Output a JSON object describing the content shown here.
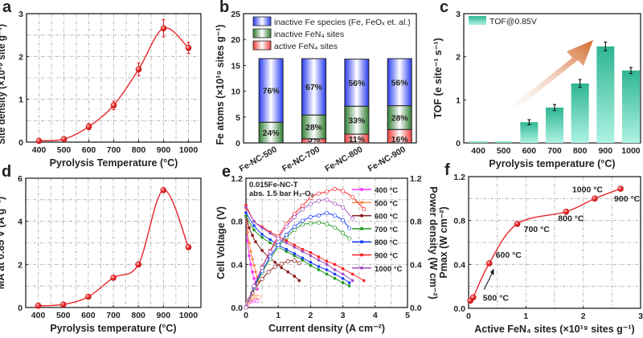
{
  "chart_data": [
    {
      "label": "a",
      "type": "line",
      "xlabel": "Pyrolysis Temperature (°C)",
      "ylabel": "Site density (×10¹⁹ site g⁻¹)",
      "xlim": [
        350,
        1050
      ],
      "ylim": [
        0,
        3
      ],
      "grid": true,
      "xticks": [
        "400",
        "500",
        "600",
        "700",
        "800",
        "900",
        "1000"
      ],
      "yticks": [
        "0",
        "1",
        "2",
        "3"
      ],
      "series": [
        {
          "name": "Site density",
          "color": "#e8242c",
          "x": [
            400,
            500,
            600,
            700,
            800,
            900,
            1000
          ],
          "y": [
            0.03,
            0.07,
            0.36,
            0.86,
            1.7,
            2.66,
            2.2
          ],
          "err": [
            0.02,
            0.03,
            0.07,
            0.1,
            0.15,
            0.2,
            0.13
          ]
        }
      ]
    },
    {
      "label": "b",
      "type": "bar",
      "ylabel": "Fe atoms (×10¹⁹ sites g⁻¹)",
      "ylim": [
        0,
        25
      ],
      "grid": false,
      "categories": [
        "Fe-NC-500",
        "Fe-NC-700",
        "Fe-NC-800",
        "Fe-NC-900"
      ],
      "yticks": [
        "0",
        "5",
        "10",
        "15",
        "20",
        "25"
      ],
      "legend": [
        "inactive Fe species (Fe, FeOₓ et. al.)",
        "inactive FeN₄ sites",
        "active FeN₄ sites"
      ],
      "legend_position": "top-left",
      "series": [
        {
          "name": "active FeN₄ sites",
          "color": "#f03c3c",
          "values": [
            0.0,
            0.8,
            1.7,
            2.6
          ],
          "labels": [
            "",
            "5%",
            "11%",
            "16%"
          ]
        },
        {
          "name": "inactive FeN₄ sites",
          "color": "#2e7d32",
          "values": [
            4.0,
            4.6,
            5.4,
            4.6
          ],
          "labels": [
            "24%",
            "28%",
            "33%",
            "28%"
          ]
        },
        {
          "name": "inactive Fe species (Fe, FeOₓ et. al.)",
          "color": "#2a3cf0",
          "values": [
            12.3,
            10.9,
            9.1,
            9.1
          ],
          "labels": [
            "76%",
            "67%",
            "56%",
            "56%"
          ]
        }
      ]
    },
    {
      "label": "c",
      "type": "bar",
      "xlabel": "Pyrolysis temperature (°C)",
      "ylabel": "TOF (e site⁻¹ s⁻¹)",
      "ylim": [
        0,
        3
      ],
      "grid": false,
      "categories": [
        "400",
        "500",
        "600",
        "700",
        "800",
        "900",
        "1000"
      ],
      "yticks": [
        "0",
        "1",
        "2",
        "3"
      ],
      "legend": [
        "TOF@0.85V"
      ],
      "legend_position": "top-left",
      "series": [
        {
          "name": "TOF@0.85V",
          "color": "#2fb592",
          "values": [
            0.03,
            0.03,
            0.48,
            0.82,
            1.38,
            2.24,
            1.68
          ],
          "err": [
            0,
            0,
            0.06,
            0.07,
            0.09,
            0.1,
            0.07
          ]
        }
      ]
    },
    {
      "label": "d",
      "type": "line",
      "xlabel": "Pyrolysis temperature (°C)",
      "ylabel": "MA at 0.85 V (A g⁻¹)",
      "xlim": [
        350,
        1050
      ],
      "ylim": [
        0,
        6
      ],
      "grid": true,
      "xticks": [
        "400",
        "500",
        "600",
        "700",
        "800",
        "900",
        "1000"
      ],
      "yticks": [
        "0",
        "2",
        "4",
        "6"
      ],
      "series": [
        {
          "name": "MA",
          "color": "#e8242c",
          "x": [
            400,
            500,
            600,
            700,
            800,
            900,
            1000
          ],
          "y": [
            0.08,
            0.14,
            0.5,
            1.38,
            2.0,
            5.45,
            2.8
          ]
        }
      ]
    },
    {
      "label": "e",
      "type": "line",
      "xlabel": "Current density (A cm⁻²)",
      "ylabel": "Cell Voltage (V)",
      "y2label": "Power density (W cm⁻²)",
      "xlim": [
        0,
        5
      ],
      "ylim": [
        0,
        1.2
      ],
      "y2lim": [
        0,
        1.2
      ],
      "grid": true,
      "xticks": [
        "0",
        "1",
        "2",
        "3",
        "4",
        "5"
      ],
      "yticks": [
        "0.0",
        "0.4",
        "0.8",
        "1.2"
      ],
      "y2ticks": [
        "0.0",
        "0.4",
        "0.8",
        "1.2"
      ],
      "annotation": [
        "0.015Fe-NC-T",
        "abs. 1.5 bar H₂-O₂"
      ],
      "legend_position": "right",
      "series": [
        {
          "name": "400 °C",
          "color": "#ff33ff",
          "x": [
            0,
            0.05,
            0.1,
            0.15,
            0.2,
            0.25,
            0.3,
            0.35
          ],
          "voltage": [
            0.92,
            0.62,
            0.48,
            0.4,
            0.33,
            0.27,
            0.22,
            0.17
          ]
        },
        {
          "name": "500 °C",
          "color": "#ff8c4d",
          "x": [
            0,
            0.05,
            0.1,
            0.15,
            0.2,
            0.25,
            0.3,
            0.35,
            0.4
          ],
          "voltage": [
            0.92,
            0.7,
            0.6,
            0.52,
            0.45,
            0.39,
            0.33,
            0.28,
            0.24
          ]
        },
        {
          "name": "600 °C",
          "color": "#8b1a1a",
          "x": [
            0,
            0.1,
            0.2,
            0.3,
            0.5,
            0.7,
            0.9,
            1.1,
            1.3,
            1.5,
            1.65
          ],
          "voltage": [
            0.85,
            0.74,
            0.67,
            0.61,
            0.53,
            0.47,
            0.42,
            0.37,
            0.33,
            0.29,
            0.25
          ]
        },
        {
          "name": "700 °C",
          "color": "#1e9a1e",
          "x": [
            0,
            0.25,
            0.5,
            0.75,
            1,
            1.25,
            1.5,
            1.75,
            2,
            2.25,
            2.5,
            2.75,
            3,
            3.2
          ],
          "voltage": [
            0.85,
            0.72,
            0.65,
            0.6,
            0.56,
            0.52,
            0.48,
            0.44,
            0.39,
            0.35,
            0.31,
            0.27,
            0.23,
            0.2
          ]
        },
        {
          "name": "800 °C",
          "color": "#1a3cff",
          "x": [
            0,
            0.25,
            0.5,
            0.75,
            1,
            1.25,
            1.5,
            1.75,
            2,
            2.25,
            2.5,
            2.75,
            3,
            3.2
          ],
          "voltage": [
            0.88,
            0.76,
            0.68,
            0.63,
            0.58,
            0.54,
            0.5,
            0.46,
            0.42,
            0.38,
            0.35,
            0.31,
            0.27,
            0.23
          ]
        },
        {
          "name": "900 °C",
          "color": "#ff2020",
          "x": [
            0,
            0.25,
            0.5,
            0.75,
            1,
            1.25,
            1.5,
            1.75,
            2,
            2.25,
            2.5,
            2.75,
            3,
            3.3,
            3.65
          ],
          "voltage": [
            0.95,
            0.8,
            0.75,
            0.7,
            0.66,
            0.62,
            0.58,
            0.54,
            0.51,
            0.47,
            0.43,
            0.4,
            0.36,
            0.31,
            0.25
          ]
        },
        {
          "name": "1000 °C",
          "color": "#a050c0",
          "x": [
            0,
            0.25,
            0.5,
            0.75,
            1,
            1.25,
            1.5,
            1.75,
            2,
            2.25,
            2.5,
            2.75,
            3,
            3.3
          ],
          "voltage": [
            0.93,
            0.8,
            0.74,
            0.69,
            0.64,
            0.6,
            0.56,
            0.52,
            0.48,
            0.44,
            0.4,
            0.35,
            0.31,
            0.25
          ]
        }
      ]
    },
    {
      "label": "f",
      "type": "line",
      "xlabel": "Active FeN₄ sites (×10¹⁹ sites g⁻¹)",
      "ylabel": "Pmax (W cm⁻²)",
      "xlim": [
        0,
        3
      ],
      "ylim": [
        0,
        1.2
      ],
      "grid": true,
      "xticks": [
        "0",
        "1",
        "2",
        "3"
      ],
      "yticks": [
        "0.0",
        "0.4",
        "0.8",
        "1.2"
      ],
      "series": [
        {
          "name": "Pmax",
          "color": "#e8242c",
          "x": [
            0.03,
            0.08,
            0.36,
            0.85,
            1.7,
            2.2,
            2.65
          ],
          "y": [
            0.07,
            0.1,
            0.41,
            0.77,
            0.88,
            1.0,
            1.09
          ],
          "point_labels": [
            "",
            "500 °C",
            "600 °C",
            "700 °C",
            "800 °C",
            "1000 °C",
            "900 °C"
          ]
        }
      ]
    }
  ]
}
